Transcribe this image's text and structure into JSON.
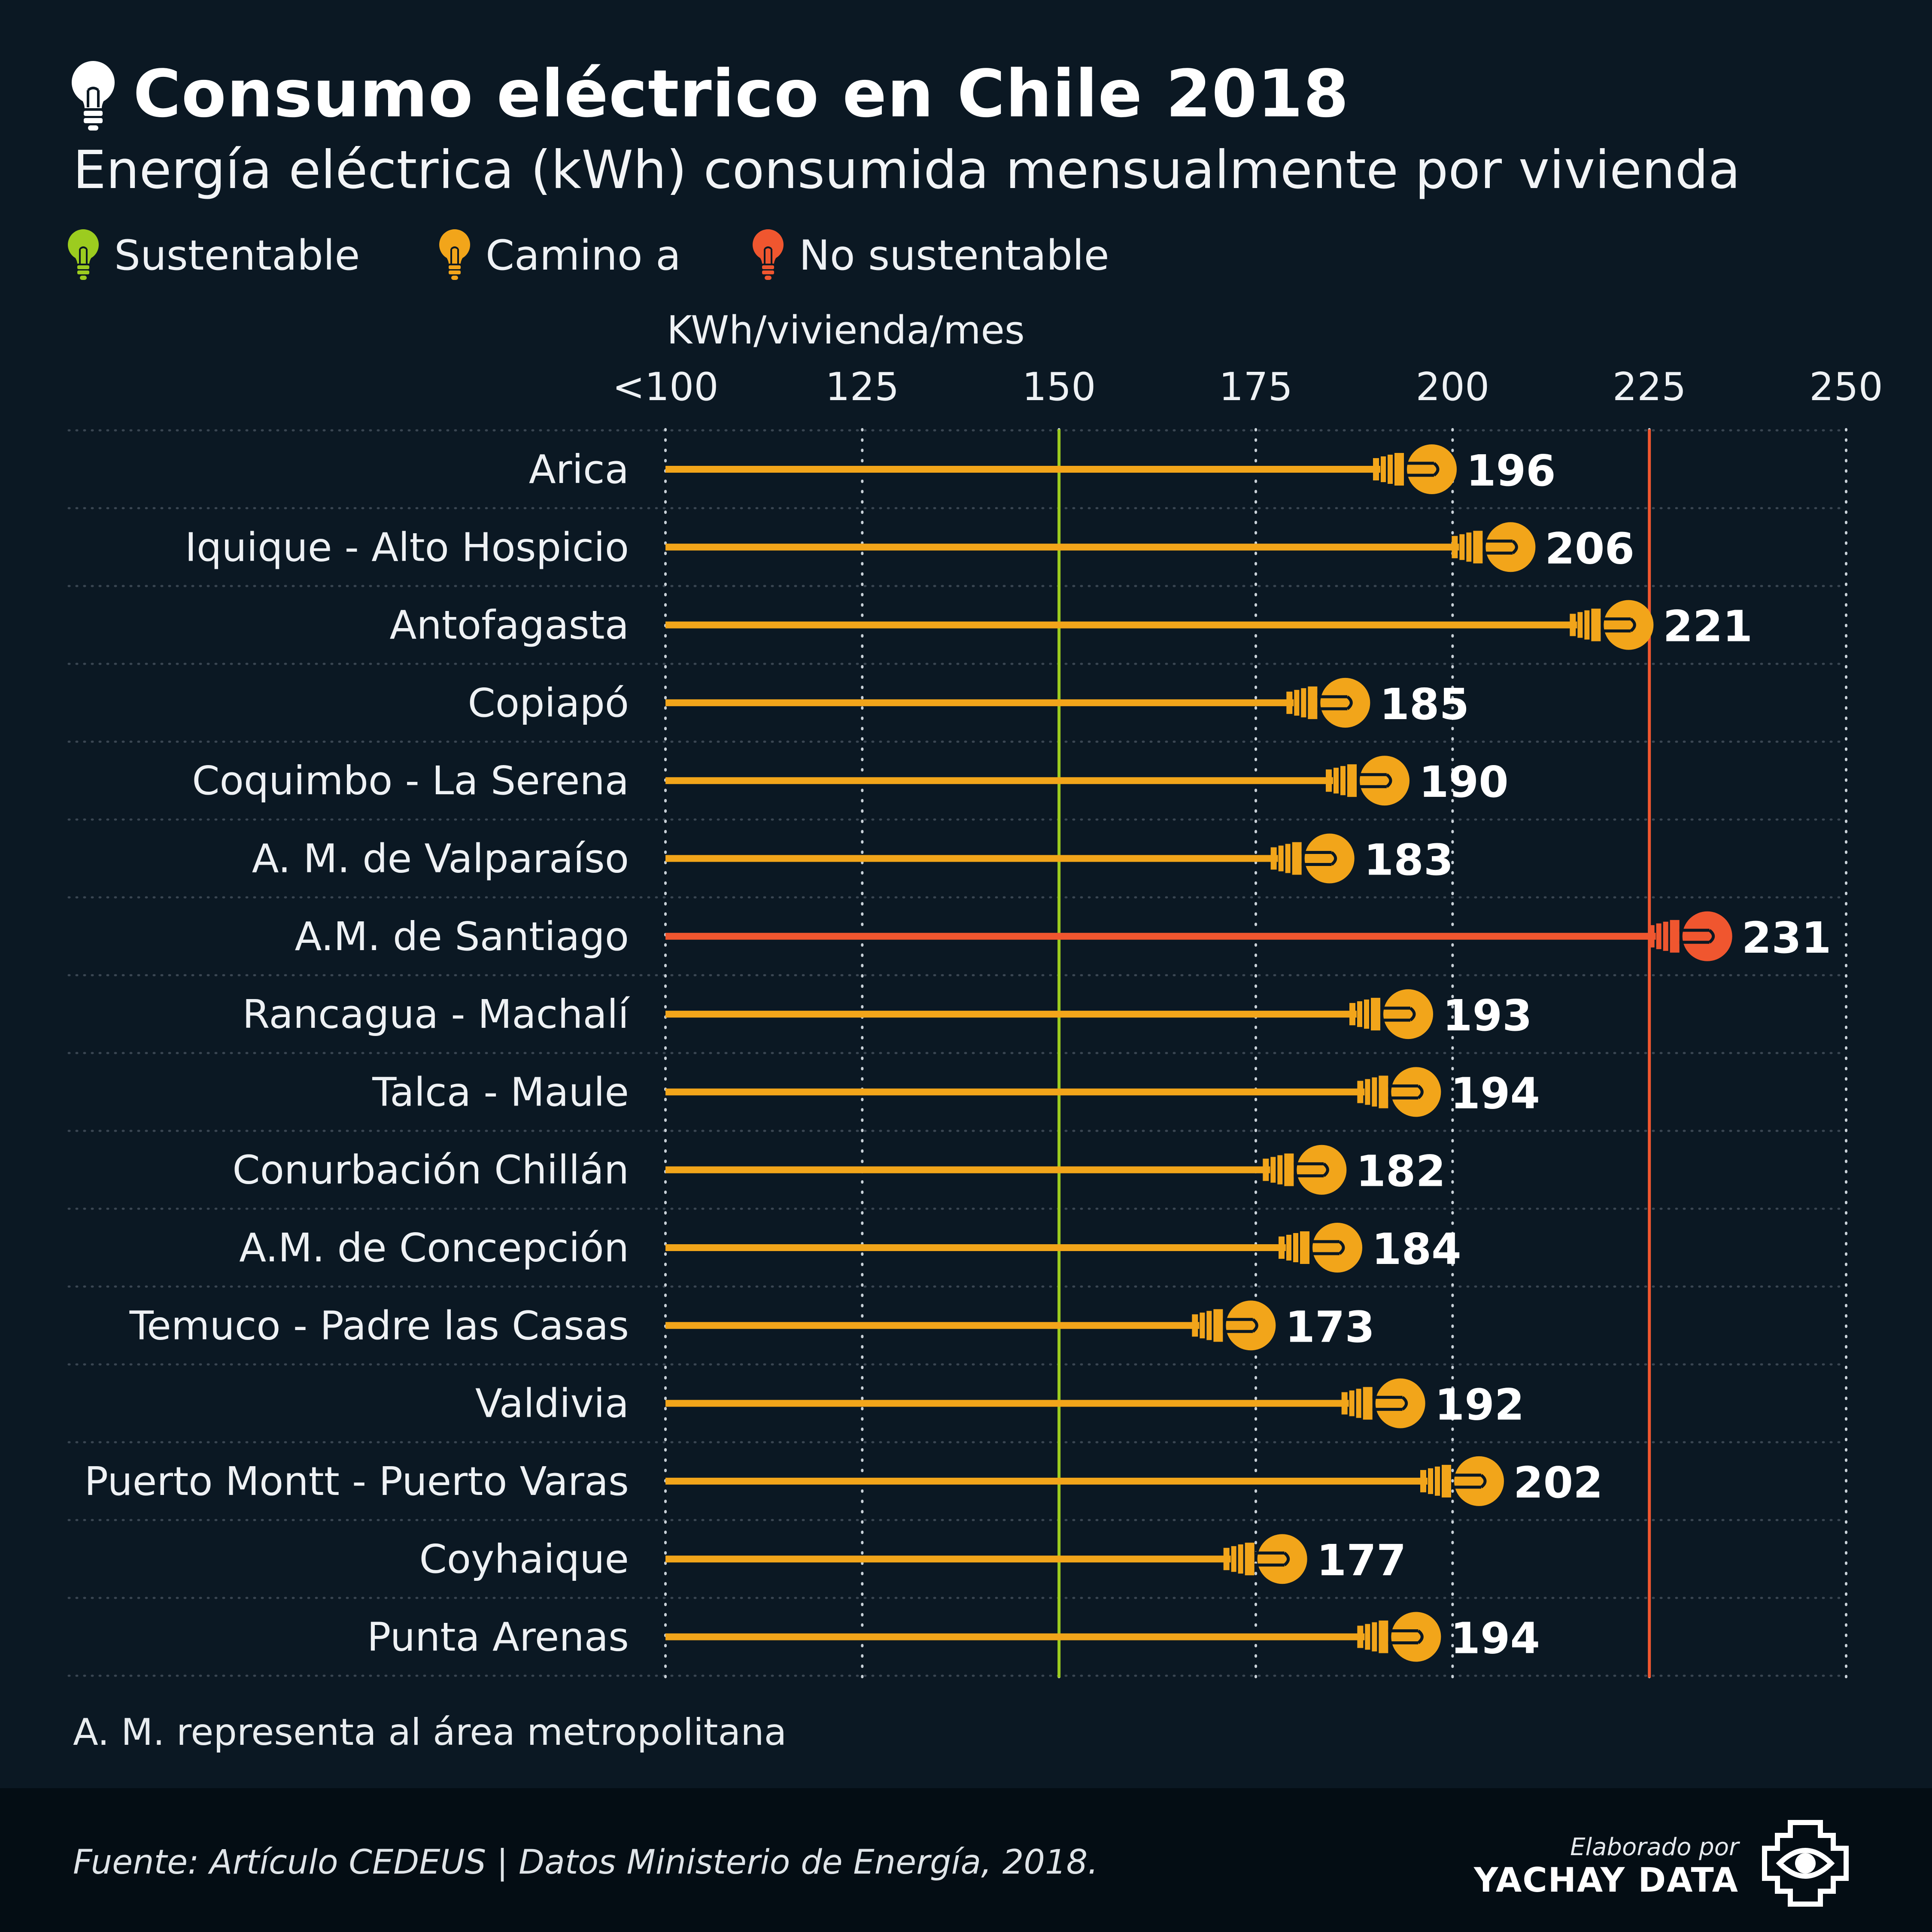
{
  "title": "Consumo eléctrico en Chile 2018",
  "subtitle": "Energía eléctrica (kWh) consumida mensualmente por vivienda",
  "legend": [
    {
      "label": "Sustentable",
      "color": "#9ccc1f",
      "icon": "lightbulb-icon"
    },
    {
      "label": "Camino a",
      "color": "#f2a51a",
      "icon": "lightbulb-icon"
    },
    {
      "label": "No sustentable",
      "color": "#f0562f",
      "icon": "lightbulb-icon"
    }
  ],
  "chart_data": {
    "type": "lollipop-bar",
    "axis_title": "KWh/vivienda/mes",
    "x_ticks": [
      100,
      125,
      150,
      175,
      200,
      225,
      250
    ],
    "x_tick_labels": [
      "<100",
      "125",
      "150",
      "175",
      "200",
      "225",
      "250"
    ],
    "xlim": [
      100,
      250
    ],
    "grid": "dotted vertical lines",
    "reference_lines": [
      {
        "value": 150,
        "color": "#9ccc1f"
      },
      {
        "value": 225,
        "color": "#f0562f"
      }
    ],
    "categories": [
      "Arica",
      "Iquique - Alto Hospicio",
      "Antofagasta",
      "Copiapó",
      "Coquimbo - La Serena",
      "A. M. de Valparaíso",
      "A.M. de Santiago",
      "Rancagua - Machalí",
      "Talca - Maule",
      "Conurbación Chillán",
      "A.M. de Concepción",
      "Temuco - Padre las Casas",
      "Valdivia",
      "Puerto Montt - Puerto Varas",
      "Coyhaique",
      "Punta Arenas"
    ],
    "values": [
      196,
      206,
      221,
      185,
      190,
      183,
      231,
      193,
      194,
      182,
      184,
      173,
      192,
      202,
      177,
      194
    ],
    "status": [
      "Camino a",
      "Camino a",
      "Camino a",
      "Camino a",
      "Camino a",
      "Camino a",
      "No sustentable",
      "Camino a",
      "Camino a",
      "Camino a",
      "Camino a",
      "Camino a",
      "Camino a",
      "Camino a",
      "Camino a",
      "Camino a"
    ],
    "colors": {
      "Camino a": "#f2a51a",
      "No sustentable": "#f0562f",
      "Sustentable": "#9ccc1f"
    }
  },
  "note": "A. M. representa al área metropolitana",
  "footer": {
    "source": "Fuente: Artículo CEDEUS | Datos  Ministerio de Energía, 2018.",
    "credit_pre": "Elaborado por",
    "credit_brand": "YACHAY DATA"
  }
}
